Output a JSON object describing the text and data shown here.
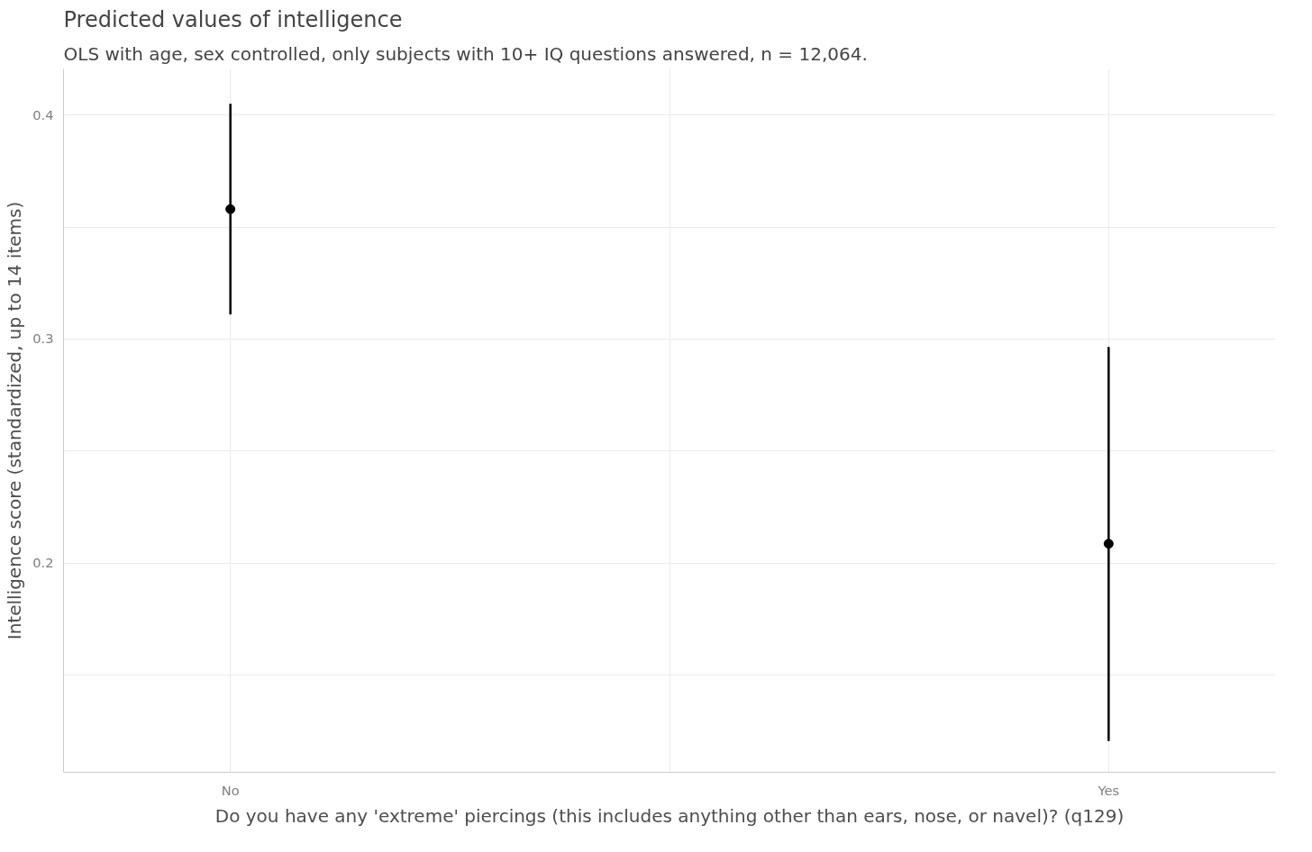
{
  "chart_data": {
    "type": "scatter",
    "title": "Predicted values of intelligence",
    "subtitle": "OLS with age, sex controlled, only subjects with 10+ IQ questions answered, n = 12,064.",
    "xlabel": "Do you have any 'extreme' piercings (this includes anything other than ears, nose, or navel)? (q129)",
    "ylabel": "Intelligence score (standardized, up to 14 items)",
    "categories": [
      "No",
      "Yes"
    ],
    "series": [
      {
        "color": "#000000",
        "values": [
          0.358,
          0.2086
        ],
        "errors": [
          [
            0.311,
            0.405
          ],
          [
            0.1206,
            0.2965
          ]
        ]
      }
    ],
    "ylim": [
      0.1066,
      0.4206
    ],
    "yticks": [
      {
        "value": 0.15,
        "label": null
      },
      0.2,
      {
        "value": 0.25,
        "label": null
      },
      0.3,
      {
        "value": 0.35,
        "label": null
      },
      0.4
    ],
    "grid": true,
    "marker": "circle"
  }
}
